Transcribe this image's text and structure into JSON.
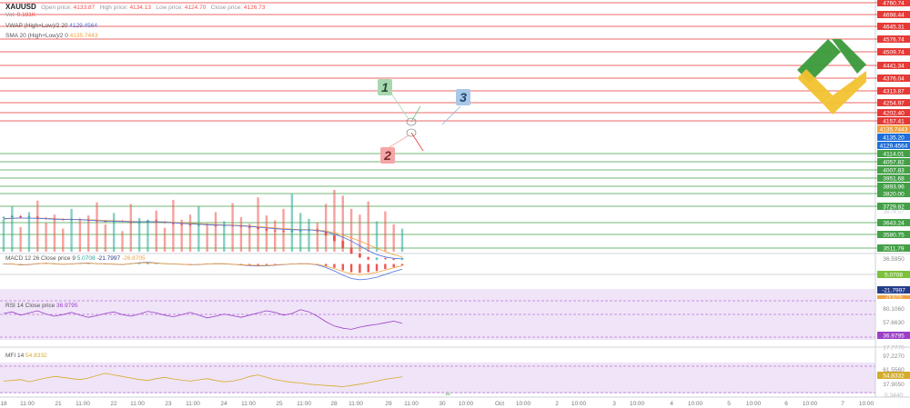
{
  "header": {
    "symbol": "XAUUSD",
    "open_label": "Open price:",
    "open_value": "4133.87",
    "high_label": "High price:",
    "high_value": "4134.13",
    "low_label": "Low price:",
    "low_value": "4124.70",
    "close_label": "Close price:",
    "close_value": "4126.73",
    "vol_label": "Vol:",
    "vol_value": "0.181K",
    "vwap_label": "VWAP (High+Low)/2 20",
    "vwap_value": "4129.4564",
    "sma_label": "SMA 20 (High+Low)/2 0",
    "sma_value": "4135.7443"
  },
  "colors": {
    "level_red": "#e53935",
    "level_green": "#43a047",
    "level_blue": "#1e6fd9",
    "up": "#26a69a",
    "down": "#ef5350",
    "vwap": "#4a6ee0",
    "sma": "#f0a040",
    "rsi": "#9b3fc7",
    "mfi": "#d4ac2b",
    "macd_badge": "#7cc13c",
    "macd_signal_badge": "#243d8a",
    "rsi_badge": "#9b3fc7",
    "mfi_badge": "#d4ac2b",
    "marker1": "#a8d8b0",
    "marker2": "#f4a5a5",
    "marker3": "#a8c8e8",
    "logo_green": "#3a9a3a",
    "logo_yellow": "#f2c230"
  },
  "price_levels": {
    "red": [
      "4760.74",
      "4698.44",
      "4645.31",
      "4576.74",
      "4509.74",
      "4441.34",
      "4376.04",
      "4313.87",
      "4254.97",
      "4202.40",
      "4157.41"
    ],
    "green": [
      "4114.01",
      "4057.82",
      "4007.83",
      "3951.68",
      "3893.96",
      "3820.00",
      "3729.82",
      "3643.24",
      "3580.75",
      "3511.79"
    ],
    "current_sma": "4135.7443",
    "current_price": "4135.20",
    "current_vwap": "4129.4564",
    "partial_label": "3674.57"
  },
  "markers": {
    "one": "1",
    "two": "2",
    "three": "3"
  },
  "macd": {
    "label": "MACD 12 26 Close price 9",
    "v1": "5.0708",
    "v2": "-21.7997",
    "v3": "-26.8705",
    "axis_top": "36.5950",
    "badge_line": "5.0708",
    "badge_signal": "-21.7997",
    "badge_hist": "-26.8705"
  },
  "rsi": {
    "label": "RSI 14 Close price",
    "value": "36.9795",
    "axis_top": "80.1060",
    "axis_mid": "57.6630",
    "axis_bottom": "17.7770",
    "badge": "36.9795"
  },
  "mfi": {
    "label": "MFI 14",
    "value": "54.8332",
    "axis_top": "97.2270",
    "axis_mid": "61.5560",
    "axis_low": "37.9050",
    "axis_bottom": "0.3440",
    "badge": "54.8332"
  },
  "time_axis": [
    "18",
    "11:00",
    "21",
    "11:00",
    "22",
    "11:00",
    "23",
    "11:00",
    "24",
    "11:00",
    "25",
    "11:00",
    "28",
    "11:00",
    "29",
    "11:00",
    "30",
    "10:00",
    "Oct",
    "10:00",
    "2",
    "10:00",
    "3",
    "10:00",
    "4",
    "10:00",
    "5",
    "10:00",
    "6",
    "10:00",
    "7",
    "10:00"
  ],
  "chart_data": {
    "type": "candlestick",
    "title": "XAUUSD",
    "xlabel": "",
    "ylabel": "",
    "ylim": [
      3480,
      4800
    ],
    "series": [
      {
        "name": "Price",
        "values": [
          3670,
          3675,
          3668,
          3672,
          3665,
          3660,
          3658,
          3655,
          3660,
          3657,
          3652,
          3648,
          3645,
          3650,
          3647,
          3640,
          3648,
          3652,
          3645,
          3640,
          3635,
          3630,
          3628,
          3632,
          3626,
          3625,
          3628,
          3624,
          3620,
          3615,
          3608,
          3600,
          3598,
          3595,
          3597,
          3600,
          3606,
          3595,
          3575,
          3545,
          3510,
          3480,
          3460,
          3450,
          3455,
          3452,
          3450,
          3455
        ]
      },
      {
        "name": "VWAP",
        "values": [
          3662,
          3664,
          3665,
          3664,
          3663,
          3661,
          3659,
          3657,
          3657,
          3656,
          3654,
          3651,
          3649,
          3648,
          3647,
          3645,
          3645,
          3646,
          3645,
          3643,
          3640,
          3637,
          3634,
          3632,
          3630,
          3628,
          3627,
          3626,
          3624,
          3621,
          3617,
          3613,
          3609,
          3606,
          3604,
          3603,
          3603,
          3600,
          3593,
          3581,
          3565,
          3545,
          3520,
          3495,
          3475,
          3462,
          3455,
          3452
        ]
      },
      {
        "name": "SMA",
        "values": [
          3660,
          3662,
          3664,
          3664,
          3664,
          3663,
          3661,
          3659,
          3658,
          3657,
          3656,
          3654,
          3652,
          3651,
          3649,
          3647,
          3646,
          3646,
          3646,
          3645,
          3643,
          3640,
          3637,
          3635,
          3633,
          3631,
          3629,
          3628,
          3626,
          3623,
          3620,
          3617,
          3613,
          3610,
          3607,
          3605,
          3604,
          3602,
          3597,
          3588,
          3576,
          3562,
          3545,
          3526,
          3507,
          3490,
          3474,
          3462
        ]
      },
      {
        "name": "Volume",
        "values": [
          40,
          55,
          30,
          48,
          62,
          35,
          45,
          28,
          52,
          38,
          44,
          60,
          33,
          47,
          25,
          58,
          41,
          36,
          50,
          29,
          63,
          39,
          45,
          55,
          31,
          48,
          37,
          59,
          42,
          34,
          66,
          44,
          38,
          52,
          70,
          47,
          40,
          35,
          58,
          75,
          68,
          52,
          45,
          61,
          37,
          49,
          33,
          28
        ]
      },
      {
        "name": "MACD",
        "values": [
          0,
          0,
          -0.5,
          -0.3,
          0.2,
          0.4,
          0.1,
          -0.2,
          0,
          0.3,
          0.5,
          0.2,
          0.1,
          -0.1,
          -0.3,
          0.2,
          0.6,
          0.8,
          0.5,
          0.2,
          0,
          -0.2,
          -0.4,
          -0.3,
          0,
          0.2,
          0.1,
          -0.2,
          -0.5,
          -0.8,
          -1,
          -0.9,
          -0.6,
          -0.3,
          0,
          0.2,
          0.1,
          -0.3,
          -1.5,
          -3,
          -5,
          -6.5,
          -7,
          -6.5,
          -5.5,
          -4,
          -2.5,
          -1.2
        ]
      },
      {
        "name": "RSI",
        "values": [
          55,
          58,
          52,
          56,
          60,
          54,
          50,
          53,
          57,
          52,
          48,
          51,
          55,
          58,
          53,
          50,
          54,
          59,
          56,
          52,
          49,
          53,
          57,
          52,
          47,
          50,
          54,
          51,
          48,
          52,
          56,
          60,
          57,
          52,
          55,
          62,
          58,
          50,
          40,
          32,
          28,
          26,
          30,
          33,
          35,
          38,
          41,
          37
        ]
      },
      {
        "name": "MFI",
        "values": [
          40,
          42,
          45,
          38,
          44,
          50,
          55,
          52,
          48,
          45,
          50,
          58,
          65,
          60,
          55,
          50,
          45,
          42,
          48,
          52,
          47,
          43,
          40,
          44,
          48,
          42,
          38,
          40,
          46,
          55,
          60,
          52,
          45,
          40,
          36,
          34,
          30,
          28,
          26,
          24,
          22,
          26,
          30,
          35,
          40,
          46,
          50,
          54
        ]
      }
    ]
  }
}
